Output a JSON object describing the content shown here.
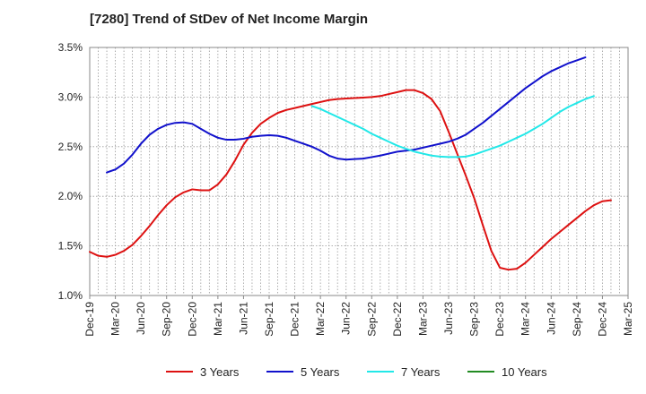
{
  "chart_data": {
    "type": "line",
    "title": "[7280]  Trend of StDev of Net Income Margin",
    "xlabel": "",
    "ylabel": "",
    "x_tick_labels": [
      "Dec-19",
      "Mar-20",
      "Jun-20",
      "Sep-20",
      "Dec-20",
      "Mar-21",
      "Jun-21",
      "Sep-21",
      "Dec-21",
      "Mar-22",
      "Jun-22",
      "Sep-22",
      "Dec-22",
      "Mar-23",
      "Jun-23",
      "Sep-23",
      "Dec-23",
      "Mar-24",
      "Jun-24",
      "Sep-24",
      "Dec-24",
      "Mar-25"
    ],
    "y_tick_labels": [
      "1.0%",
      "1.5%",
      "2.0%",
      "2.5%",
      "3.0%",
      "3.5%"
    ],
    "y_ticks": [
      1.0,
      1.5,
      2.0,
      2.5,
      3.0,
      3.5
    ],
    "ylim": [
      1.0,
      3.5
    ],
    "grid": true,
    "legend_position": "bottom",
    "series": [
      {
        "name": "3 Years",
        "color": "#dd1111",
        "values": [
          1.44,
          1.4,
          1.39,
          1.41,
          1.45,
          1.51,
          1.6,
          1.7,
          1.81,
          1.91,
          1.99,
          2.04,
          2.07,
          2.06,
          2.06,
          2.12,
          2.22,
          2.36,
          2.52,
          2.64,
          2.73,
          2.79,
          2.84,
          2.87,
          2.89,
          2.91,
          2.93,
          2.95,
          2.97,
          2.98,
          2.985,
          2.99,
          2.995,
          3.0,
          3.01,
          3.03,
          3.05,
          3.07,
          3.07,
          3.04,
          2.98,
          2.86,
          2.65,
          2.43,
          2.21,
          1.98,
          1.71,
          1.45,
          1.28,
          1.26,
          1.27,
          1.33,
          1.41,
          1.49,
          1.57,
          1.64,
          1.71,
          1.78,
          1.85,
          1.91,
          1.95,
          1.96
        ]
      },
      {
        "name": "5 Years",
        "color": "#1111cc",
        "values": [
          null,
          null,
          2.24,
          2.27,
          2.33,
          2.42,
          2.53,
          2.62,
          2.68,
          2.72,
          2.74,
          2.745,
          2.73,
          2.68,
          2.63,
          2.59,
          2.57,
          2.57,
          2.58,
          2.6,
          2.61,
          2.615,
          2.61,
          2.59,
          2.56,
          2.53,
          2.5,
          2.46,
          2.41,
          2.38,
          2.37,
          2.375,
          2.38,
          2.395,
          2.41,
          2.43,
          2.45,
          2.46,
          2.47,
          2.49,
          2.51,
          2.53,
          2.55,
          2.58,
          2.62,
          2.68,
          2.74,
          2.81,
          2.88,
          2.95,
          3.02,
          3.09,
          3.15,
          3.21,
          3.26,
          3.3,
          3.34,
          3.37,
          3.4
        ]
      },
      {
        "name": "7 Years",
        "color": "#22e8e8",
        "values": [
          null,
          null,
          null,
          null,
          null,
          null,
          null,
          null,
          null,
          null,
          null,
          null,
          null,
          null,
          null,
          null,
          null,
          null,
          null,
          null,
          null,
          null,
          null,
          null,
          null,
          null,
          2.91,
          2.88,
          2.84,
          2.8,
          2.76,
          2.72,
          2.68,
          2.63,
          2.59,
          2.55,
          2.51,
          2.48,
          2.45,
          2.43,
          2.41,
          2.4,
          2.395,
          2.395,
          2.4,
          2.42,
          2.45,
          2.48,
          2.51,
          2.55,
          2.59,
          2.63,
          2.68,
          2.73,
          2.79,
          2.85,
          2.9,
          2.94,
          2.98,
          3.01
        ]
      },
      {
        "name": "10 Years",
        "color": "#228b22",
        "values": []
      }
    ]
  }
}
